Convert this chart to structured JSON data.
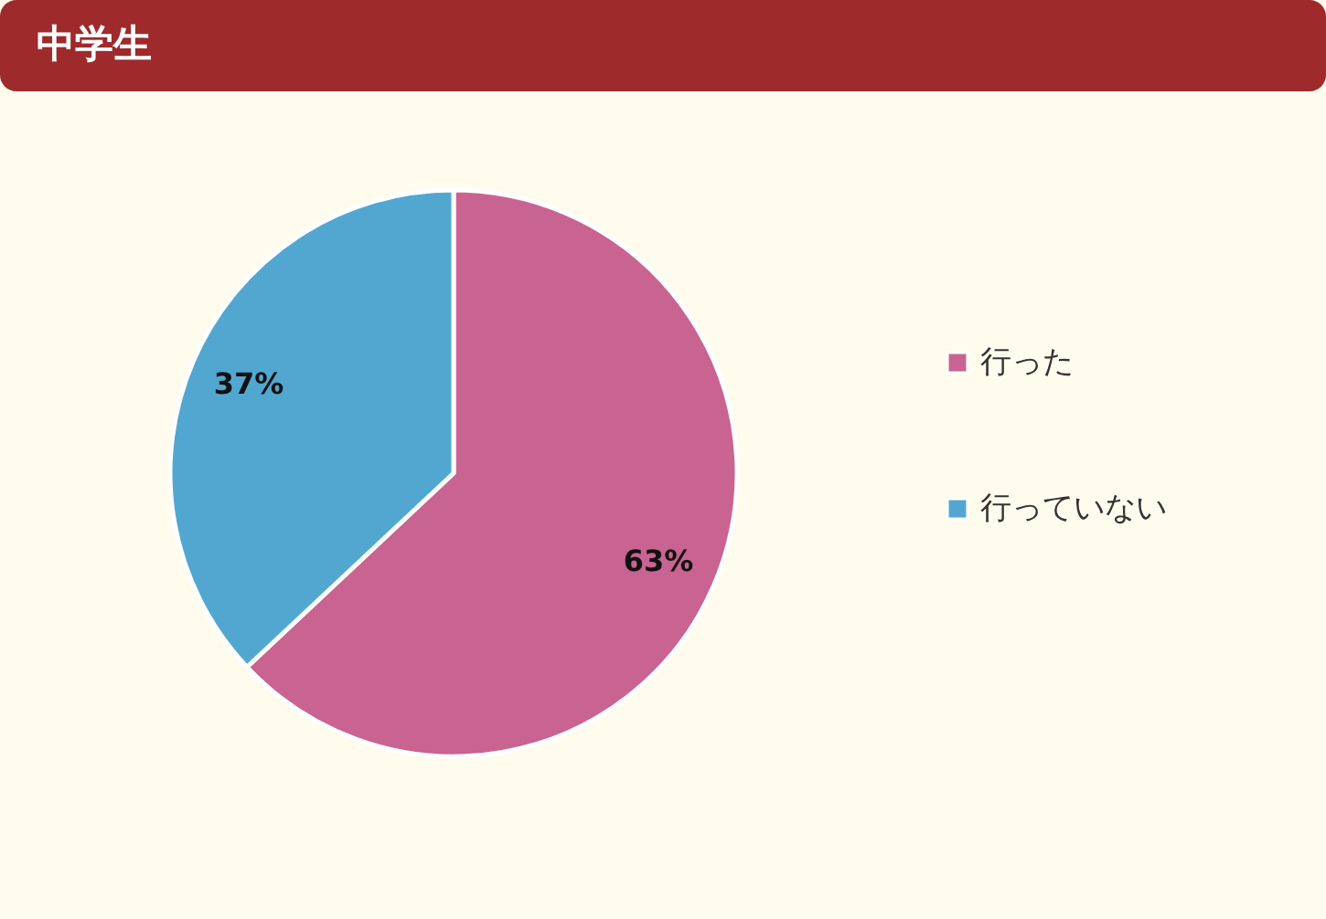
{
  "chart_data": {
    "type": "pie",
    "title": "中学生",
    "categories": [
      "行った",
      "行っていない"
    ],
    "values": [
      63,
      37
    ],
    "colors": [
      "#c96391",
      "#52a7d1"
    ],
    "value_labels": [
      "63%",
      "37%"
    ],
    "legend": "right"
  }
}
